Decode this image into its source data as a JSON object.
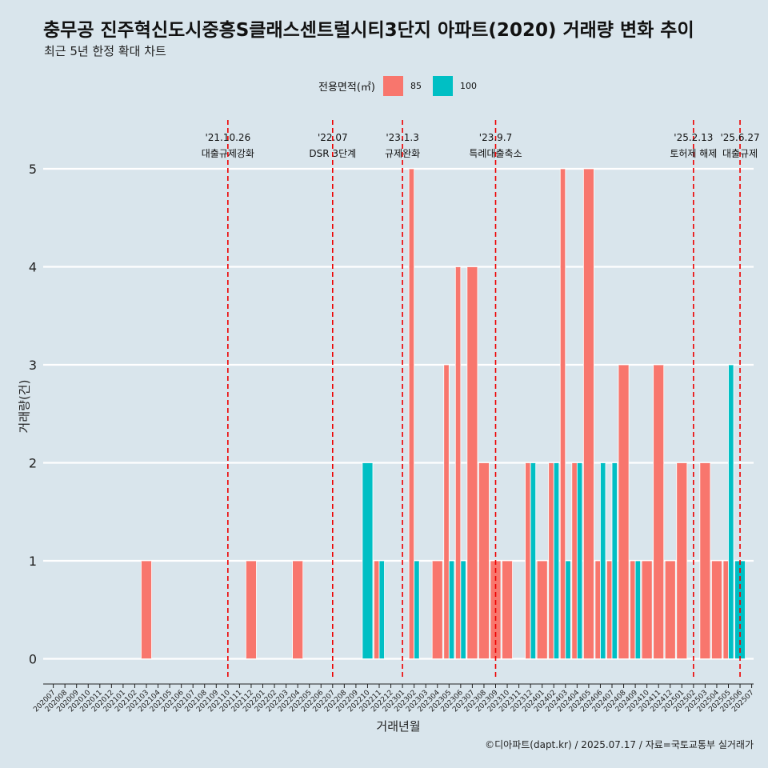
{
  "title": "충무공 진주혁신도시중흥S클래스센트럴시티3단지 아파트(2020) 거래량 변화 추이",
  "subtitle": "최근 5년 한정 확대 차트",
  "legend": {
    "title": "전용면적(㎡)",
    "items": [
      {
        "label": "85",
        "color": "#F8766D"
      },
      {
        "label": "100",
        "color": "#00BFC4"
      }
    ]
  },
  "caption": "©디아파트(dapt.kr) / 2025.07.17 / 자료=국토교통부 실거래가",
  "chart_data": {
    "type": "bar",
    "title": "충무공 진주혁신도시중흥S클래스센트럴시티3단지 아파트(2020) 거래량 변화 추이",
    "subtitle": "최근 5년 한정 확대 차트",
    "xlabel": "거래년월",
    "ylabel": "거래량(건)",
    "ylim": [
      -0.22,
      5.3
    ],
    "yticks": [
      0,
      1,
      2,
      3,
      4,
      5
    ],
    "grid": true,
    "legend_position": "top",
    "categories": [
      "202007",
      "202008",
      "202009",
      "202010",
      "202011",
      "202012",
      "202101",
      "202102",
      "202103",
      "202104",
      "202105",
      "202106",
      "202107",
      "202108",
      "202109",
      "202110",
      "202111",
      "202112",
      "202201",
      "202202",
      "202203",
      "202204",
      "202205",
      "202206",
      "202207",
      "202208",
      "202209",
      "202210",
      "202211",
      "202212",
      "202301",
      "202302",
      "202303",
      "202304",
      "202305",
      "202306",
      "202307",
      "202308",
      "202309",
      "202310",
      "202311",
      "202312",
      "202401",
      "202402",
      "202403",
      "202404",
      "202405",
      "202406",
      "202407",
      "202408",
      "202409",
      "202410",
      "202411",
      "202412",
      "202501",
      "202502",
      "202503",
      "202504",
      "202505",
      "202506",
      "202507"
    ],
    "series": [
      {
        "name": "85",
        "color": "#F8766D",
        "values": [
          0,
          0,
          0,
          0,
          0,
          0,
          0,
          0,
          1,
          0,
          0,
          0,
          0,
          0,
          0,
          0,
          0,
          1,
          0,
          0,
          0,
          1,
          0,
          0,
          0,
          0,
          0,
          0,
          1,
          0,
          0,
          5,
          0,
          1,
          3,
          4,
          4,
          2,
          1,
          1,
          0,
          2,
          1,
          2,
          5,
          2,
          5,
          1,
          1,
          3,
          1,
          1,
          3,
          1,
          2,
          0,
          2,
          1,
          1,
          0,
          0
        ]
      },
      {
        "name": "100",
        "color": "#00BFC4",
        "values": [
          0,
          0,
          0,
          0,
          0,
          0,
          0,
          0,
          0,
          0,
          0,
          0,
          0,
          0,
          0,
          0,
          0,
          0,
          0,
          0,
          0,
          0,
          0,
          0,
          0,
          0,
          0,
          2,
          1,
          0,
          0,
          1,
          0,
          0,
          1,
          1,
          0,
          0,
          0,
          0,
          0,
          2,
          0,
          2,
          1,
          2,
          0,
          2,
          2,
          0,
          1,
          0,
          0,
          0,
          0,
          0,
          0,
          0,
          3,
          1,
          0
        ]
      }
    ],
    "events": [
      {
        "date": "'21.10.26",
        "label": "대출규제강화",
        "at": "202110"
      },
      {
        "date": "'22.07",
        "label": "DSR 3단계",
        "at": "202207"
      },
      {
        "date": "'23.1.3",
        "label": "규제완화",
        "at": "202301"
      },
      {
        "date": "'23.9.7",
        "label": "특례대출축소",
        "at": "202309"
      },
      {
        "date": "'25.2.13",
        "label": "토허제 해제",
        "at": "202502"
      },
      {
        "date": "'25.6.27",
        "label": "대출규제",
        "at": "202506"
      }
    ]
  }
}
